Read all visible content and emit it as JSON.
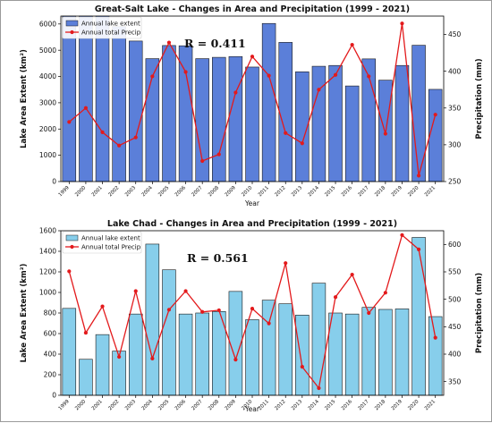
{
  "chart_data": [
    {
      "type": "bar+line",
      "title": "Great-Salt Lake - Changes in Area and Precipitation (1999 - 2021)",
      "annotation": "R = 0.411",
      "xlabel": "Year",
      "ylabel": "Lake Area Extent (km²)",
      "y2label": "Precipitation (mm)",
      "categories": [
        "1999",
        "2000",
        "2001",
        "2002",
        "2003",
        "2004",
        "2005",
        "2006",
        "2007",
        "2008",
        "2009",
        "2010",
        "2011",
        "2012",
        "2013",
        "2014",
        "2015",
        "2016",
        "2017",
        "2018",
        "2019",
        "2020",
        "2021"
      ],
      "ylim": [
        0,
        6300
      ],
      "yticks": [
        0,
        1000,
        2000,
        3000,
        4000,
        5000,
        6000
      ],
      "y2lim": [
        250,
        475
      ],
      "y2ticks": [
        250,
        300,
        350,
        400,
        450
      ],
      "legend_position": "top-left",
      "series": [
        {
          "name": "Annual lake extent",
          "kind": "bar",
          "color": "#5b7fd9",
          "values": [
            6300,
            6300,
            6300,
            5900,
            5350,
            4680,
            5180,
            5170,
            4680,
            4730,
            4760,
            4360,
            6020,
            5300,
            4180,
            4390,
            4420,
            3640,
            4670,
            3860,
            4420,
            5190,
            3510
          ]
        },
        {
          "name": "Annual total Precip",
          "kind": "line",
          "axis": "right",
          "color": "#e31a1c",
          "values": [
            331,
            350,
            317,
            299,
            310,
            393,
            439,
            399,
            278,
            287,
            371,
            420,
            394,
            316,
            302,
            375,
            395,
            436,
            393,
            315,
            465,
            258,
            341
          ]
        }
      ]
    },
    {
      "type": "bar+line",
      "title": "Lake Chad - Changes in Area and Precipitation (1999 - 2021)",
      "annotation": "R = 0.561",
      "xlabel": "Year",
      "ylabel": "Lake Area Extent (km²)",
      "y2label": "Precipitation (mm)",
      "categories": [
        "1999",
        "2000",
        "2001",
        "2002",
        "2003",
        "2004",
        "2005",
        "2006",
        "2007",
        "2008",
        "2009",
        "2010",
        "2011",
        "2012",
        "2013",
        "2014",
        "2015",
        "2016",
        "2017",
        "2018",
        "2019",
        "2020",
        "2021"
      ],
      "ylim": [
        0,
        1600
      ],
      "yticks": [
        0,
        200,
        400,
        600,
        800,
        1000,
        1200,
        1400,
        1600
      ],
      "y2lim": [
        325,
        625
      ],
      "y2ticks": [
        350,
        400,
        450,
        500,
        550,
        600
      ],
      "legend_position": "top-left",
      "series": [
        {
          "name": "Annual lake extent",
          "kind": "bar",
          "color": "#87ceeb",
          "values": [
            845,
            350,
            590,
            430,
            790,
            1470,
            1220,
            790,
            800,
            815,
            1010,
            735,
            925,
            890,
            780,
            1090,
            800,
            790,
            855,
            835,
            840,
            1535,
            765
          ]
        },
        {
          "name": "Annual total Precip",
          "kind": "line",
          "axis": "right",
          "color": "#e31a1c",
          "values": [
            551,
            439,
            487,
            395,
            515,
            392,
            481,
            515,
            477,
            480,
            390,
            483,
            456,
            566,
            377,
            338,
            504,
            545,
            475,
            512,
            617,
            591,
            430
          ]
        }
      ]
    }
  ]
}
